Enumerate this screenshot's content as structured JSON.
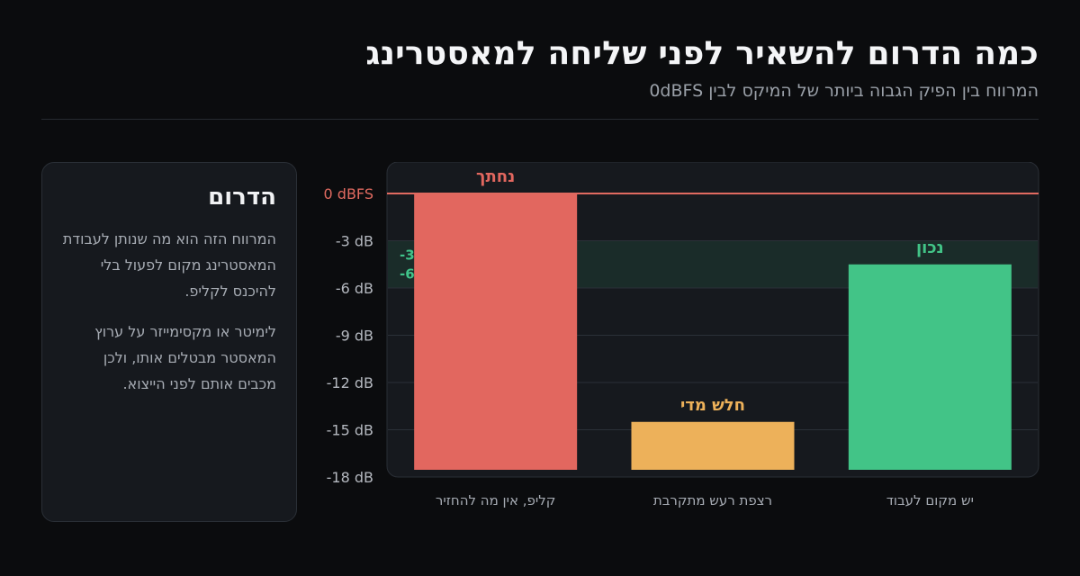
{
  "header": {
    "title": "כמה הדרום להשאיר לפני שליחה למאסטרינג",
    "subtitle": "המרווח בין הפיק הגבוה ביותר של המיקס לבין 0dBFS"
  },
  "side_panel": {
    "title": "הדרום",
    "paragraphs": [
      "המרווח הזה הוא מה שנותן לעבודת המאסטרינג מקום לפעול בלי להיכנס לקליפ.",
      "לימיטר או מקסימייזר על ערוץ המאסטר מבטלים אותו, ולכן מכבים אותם לפני הייצוא."
    ]
  },
  "chart_data": {
    "type": "bar",
    "y_unit": "dB",
    "ylim": [
      -18,
      0
    ],
    "y_ticks": [
      {
        "value": 0,
        "label": "0 dBFS"
      },
      {
        "value": -3,
        "label": "-3 dB"
      },
      {
        "value": -6,
        "label": "-6 dB"
      },
      {
        "value": -9,
        "label": "-9 dB"
      },
      {
        "value": -12,
        "label": "-12 dB"
      },
      {
        "value": -15,
        "label": "-15 dB"
      },
      {
        "value": -18,
        "label": "-18 dB"
      }
    ],
    "target_band": {
      "from": -3,
      "to": -6,
      "labels": [
        "-3 dB",
        "-6 dB"
      ],
      "color": "#40c48a"
    },
    "reference_line": {
      "value": 0,
      "color": "#e06a60"
    },
    "grid": true,
    "categories": [
      "קליפ, אין מה להחזיר",
      "רצפת רעש מתקרבת",
      "יש מקום לעבוד"
    ],
    "values": [
      0,
      -14.5,
      -4.5
    ],
    "value_labels": [
      "נחתך",
      "חלש מדי",
      "נכון"
    ],
    "colors": [
      "#e2675f",
      "#edb15a",
      "#42c487"
    ]
  }
}
